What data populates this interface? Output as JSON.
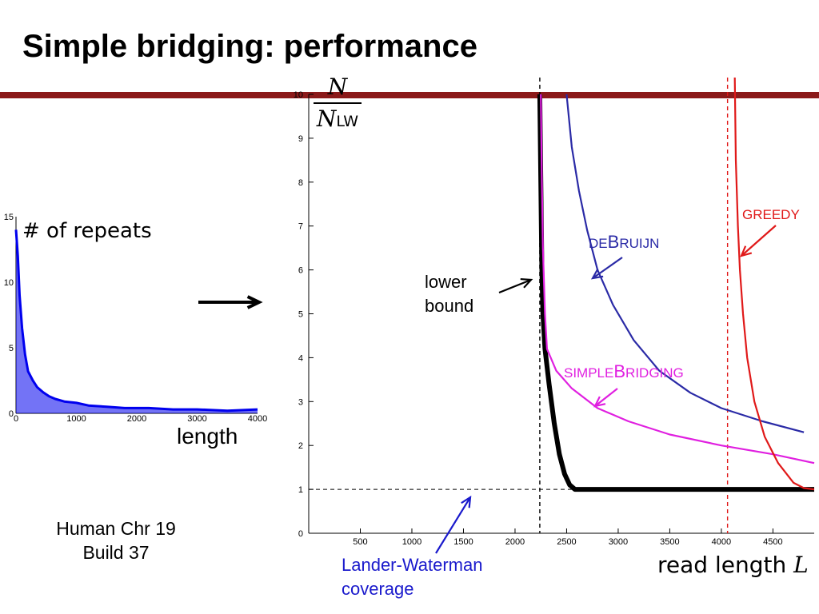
{
  "slide": {
    "title": "Simple bridging: performance",
    "footnote": [
      "Human Chr 19",
      "Build 37"
    ]
  },
  "colors": {
    "rule": "#8b1a1a",
    "lower_bound": "#000000",
    "greedy": "#e01919",
    "debruijn": "#2a2aa6",
    "simplebridging": "#e020e0",
    "lander_waterman": "#1a1acc",
    "histogram": "#0000ee"
  },
  "annotations": {
    "lower_bound": [
      "lower",
      "bound"
    ],
    "lander_waterman": [
      "Lander-Waterman",
      "coverage"
    ],
    "greedy": "GREEDY",
    "debruijn": {
      "small": "DE",
      "cap": "B",
      "rest": "RUIJN"
    },
    "simplebridging": {
      "small": "SIMPLE",
      "cap": "B",
      "rest": "RIDGING"
    }
  },
  "chart_data": [
    {
      "type": "line",
      "xlabel": "read length L",
      "ylabel": "N / N_LW",
      "ylabel_parts": {
        "numerator": "N",
        "denominator": "N",
        "subscript": "LW"
      },
      "xlim": [
        0,
        4900
      ],
      "ylim": [
        0,
        10
      ],
      "xticks": [
        500,
        1000,
        1500,
        2000,
        2500,
        3000,
        3500,
        4000,
        4500
      ],
      "yticks": [
        0,
        1,
        2,
        3,
        4,
        5,
        6,
        7,
        8,
        9,
        10
      ],
      "legend": "annotations on curves",
      "grid": false,
      "reference_lines": [
        {
          "orientation": "horizontal",
          "y": 1,
          "style": "dashed",
          "label": "Lander-Waterman coverage"
        },
        {
          "orientation": "vertical",
          "x": 2240,
          "style": "dashed",
          "label": "lower bound"
        },
        {
          "orientation": "vertical",
          "x": 4060,
          "style": "dashed",
          "color": "red"
        }
      ],
      "series": [
        {
          "name": "lower bound",
          "color": "#000000",
          "points": [
            [
              2240,
              10
            ],
            [
              2250,
              8
            ],
            [
              2260,
              6
            ],
            [
              2270,
              5
            ],
            [
              2290,
              4.2
            ],
            [
              2330,
              3.4
            ],
            [
              2380,
              2.5
            ],
            [
              2430,
              1.8
            ],
            [
              2480,
              1.35
            ],
            [
              2530,
              1.1
            ],
            [
              2580,
              1.0
            ],
            [
              4900,
              1.0
            ]
          ]
        },
        {
          "name": "SIMPLEBRIDGING",
          "color": "#e020e0",
          "points": [
            [
              2250,
              10
            ],
            [
              2260,
              8
            ],
            [
              2270,
              6.5
            ],
            [
              2290,
              5
            ],
            [
              2310,
              4.2
            ],
            [
              2400,
              3.7
            ],
            [
              2550,
              3.3
            ],
            [
              2800,
              2.85
            ],
            [
              3100,
              2.55
            ],
            [
              3500,
              2.25
            ],
            [
              4000,
              2.0
            ],
            [
              4500,
              1.8
            ],
            [
              4900,
              1.6
            ]
          ]
        },
        {
          "name": "DEBRUIJN",
          "color": "#2a2aa6",
          "points": [
            [
              2500,
              10
            ],
            [
              2550,
              8.8
            ],
            [
              2620,
              7.8
            ],
            [
              2700,
              6.9
            ],
            [
              2800,
              6.0
            ],
            [
              2950,
              5.2
            ],
            [
              3150,
              4.4
            ],
            [
              3400,
              3.7
            ],
            [
              3700,
              3.2
            ],
            [
              4000,
              2.85
            ],
            [
              4400,
              2.55
            ],
            [
              4800,
              2.3
            ]
          ]
        },
        {
          "name": "GREEDY",
          "color": "#e01919",
          "points": [
            [
              4130,
              10
            ],
            [
              4140,
              8.5
            ],
            [
              4160,
              7
            ],
            [
              4180,
              6
            ],
            [
              4210,
              5
            ],
            [
              4250,
              4
            ],
            [
              4320,
              3
            ],
            [
              4420,
              2.2
            ],
            [
              4550,
              1.6
            ],
            [
              4700,
              1.15
            ],
            [
              4800,
              1.03
            ],
            [
              4900,
              1.0
            ]
          ]
        }
      ]
    },
    {
      "type": "line",
      "xlabel": "length",
      "ylabel": "# of repeats",
      "xlim": [
        0,
        4000
      ],
      "ylim": [
        0,
        15
      ],
      "xticks": [
        0,
        1000,
        2000,
        3000,
        4000
      ],
      "yticks": [
        0,
        5,
        10,
        15
      ],
      "grid": false,
      "series": [
        {
          "name": "repeats",
          "color": "#0000ee",
          "points": [
            [
              0,
              14
            ],
            [
              30,
              12
            ],
            [
              60,
              9
            ],
            [
              100,
              6.5
            ],
            [
              150,
              4.5
            ],
            [
              200,
              3.2
            ],
            [
              280,
              2.5
            ],
            [
              350,
              2.0
            ],
            [
              450,
              1.6
            ],
            [
              550,
              1.3
            ],
            [
              650,
              1.1
            ],
            [
              800,
              0.9
            ],
            [
              1000,
              0.8
            ],
            [
              1200,
              0.6
            ],
            [
              1500,
              0.5
            ],
            [
              1800,
              0.4
            ],
            [
              2200,
              0.4
            ],
            [
              2600,
              0.3
            ],
            [
              3000,
              0.3
            ],
            [
              3500,
              0.2
            ],
            [
              4000,
              0.3
            ]
          ]
        }
      ]
    }
  ]
}
